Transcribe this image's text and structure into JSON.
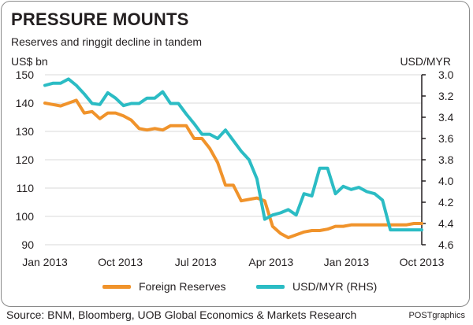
{
  "header": {
    "title": "PRESSURE MOUNTS",
    "subtitle": "Reserves and ringgit decline in tandem"
  },
  "footer": {
    "source": "Source: BNM, Bloomberg, UOB Global Economics & Markets Research",
    "credit": "POSTgraphics"
  },
  "colors": {
    "reserves": "#f0932b",
    "usdmyr": "#2bbcc4",
    "grid": "#d9d9d9"
  },
  "chart_data": {
    "type": "line",
    "title": "PRESSURE MOUNTS",
    "subtitle": "Reserves and ringgit decline in tandem",
    "ylabel": "US$ bn",
    "y2label": "USD/MYR",
    "ylim": [
      90,
      150
    ],
    "yticks": [
      90,
      100,
      110,
      120,
      130,
      140,
      150
    ],
    "y2lim": [
      4.6,
      3.0
    ],
    "y2ticks": [
      "3.0",
      "3.2",
      "3.4",
      "3.6",
      "3.8",
      "4.0",
      "4.2",
      "4.4",
      "4.6"
    ],
    "xticks": [
      "Jan 2013",
      "Oct 2013",
      "Jul 2013",
      "Apr 2013",
      "Jan 2013",
      "Oct 2013"
    ],
    "grid": true,
    "legend_position": "bottom",
    "series": [
      {
        "name": "Foreign Reserves",
        "axis": "left",
        "x": [
          0,
          0.5,
          1,
          1.5,
          2,
          2.5,
          3,
          3.5,
          4,
          4.5,
          5,
          5.5,
          6,
          6.5,
          7,
          7.5,
          8,
          8.5,
          9,
          9.5,
          10,
          10.5,
          11,
          11.5,
          12,
          12.5,
          13,
          13.5,
          14,
          14.5,
          15,
          15.5,
          16,
          16.5,
          17,
          17.5,
          18,
          18.5,
          19,
          19.5,
          20,
          20.5,
          21,
          21.5,
          22,
          22.5,
          23,
          23.5,
          24
        ],
        "values": [
          140,
          139.5,
          139,
          140,
          141,
          136.5,
          137,
          134.5,
          136.5,
          136.5,
          135.5,
          134,
          131,
          130.5,
          131,
          130.5,
          132,
          132,
          132,
          127.5,
          127.5,
          124,
          119,
          111,
          111,
          105.5,
          106,
          106.5,
          105.5,
          96.5,
          94,
          92.5,
          93.5,
          94.5,
          95,
          95,
          95.5,
          96.5,
          96.5,
          97,
          97,
          97,
          97,
          97,
          97,
          97,
          97,
          97.5,
          97.5
        ]
      },
      {
        "name": "USD/MYR (RHS)",
        "axis": "right",
        "x": [
          0,
          0.5,
          1,
          1.5,
          2,
          2.5,
          3,
          3.5,
          4,
          4.5,
          5,
          5.5,
          6,
          6.5,
          7,
          7.5,
          8,
          8.5,
          9,
          9.5,
          10,
          10.5,
          11,
          11.5,
          12,
          12.5,
          13,
          13.5,
          14,
          14.5,
          15,
          15.5,
          16,
          16.5,
          17,
          17.5,
          18,
          18.5,
          19,
          19.5,
          20,
          20.5,
          21,
          21.5,
          22,
          22.5,
          23,
          23.5,
          24
        ],
        "values": [
          3.1,
          3.08,
          3.08,
          3.04,
          3.1,
          3.18,
          3.27,
          3.28,
          3.17,
          3.22,
          3.29,
          3.27,
          3.27,
          3.22,
          3.22,
          3.16,
          3.27,
          3.27,
          3.37,
          3.46,
          3.56,
          3.56,
          3.6,
          3.52,
          3.62,
          3.72,
          3.8,
          3.98,
          4.36,
          4.32,
          4.3,
          4.27,
          4.32,
          4.12,
          4.14,
          3.88,
          3.88,
          4.12,
          4.05,
          4.08,
          4.06,
          4.1,
          4.12,
          4.18,
          4.46,
          4.46,
          4.46,
          4.46,
          4.46
        ]
      }
    ]
  }
}
